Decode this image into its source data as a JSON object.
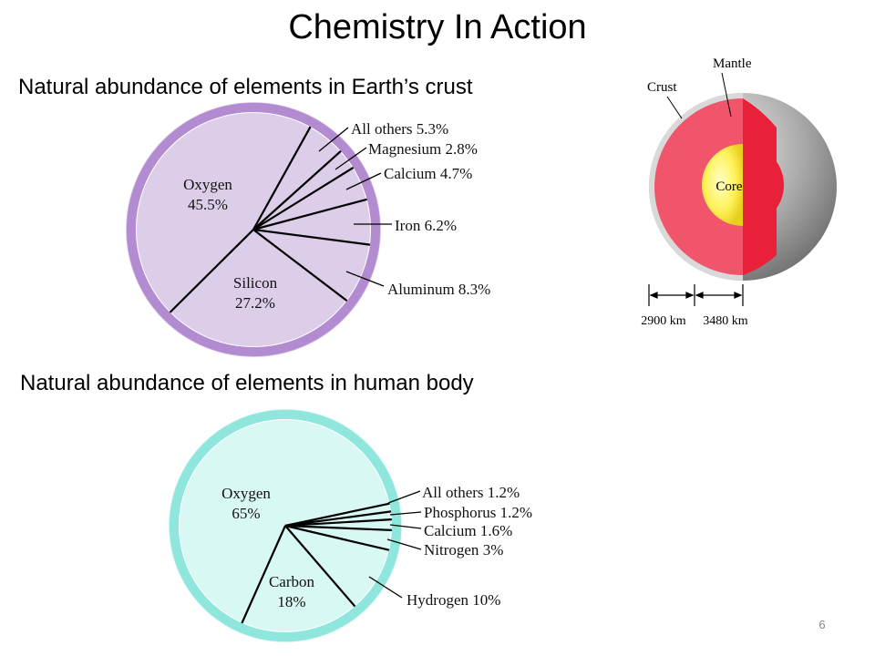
{
  "title": "Chemistry In Action",
  "chart_data": [
    {
      "type": "pie",
      "title": "Natural abundance of elements in Earth’s crust",
      "categories": [
        "All others",
        "Magnesium",
        "Calcium",
        "Iron",
        "Aluminum",
        "Silicon",
        "Oxygen"
      ],
      "values": [
        5.3,
        2.8,
        4.7,
        6.2,
        8.3,
        27.2,
        45.5
      ],
      "value_labels": [
        "5.3%",
        "2.8%",
        "4.7%",
        "6.2%",
        "8.3%",
        "27.2%",
        "45.5%"
      ],
      "color": "#dccde9",
      "ring_color": "#b28bd0"
    },
    {
      "type": "pie",
      "title": "Natural abundance of elements in human body",
      "categories": [
        "All others",
        "Phosphorus",
        "Calcium",
        "Nitrogen",
        "Hydrogen",
        "Carbon",
        "Oxygen"
      ],
      "values": [
        1.2,
        1.2,
        1.6,
        3,
        10,
        18,
        65
      ],
      "value_labels": [
        "1.2%",
        "1.2%",
        "1.6%",
        "3%",
        "10%",
        "18%",
        "65%"
      ],
      "color": "#d8f8f3",
      "ring_color": "#8ee6dd"
    }
  ],
  "diagram": {
    "crust": "Crust",
    "mantle": "Mantle",
    "core": "Core",
    "mantle_depth": "2900 km",
    "core_radius": "3480 km"
  },
  "page_number": "6"
}
